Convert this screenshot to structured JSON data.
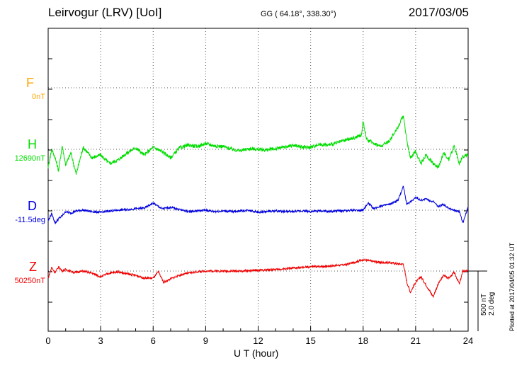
{
  "header": {
    "station": "Leirvogur (LRV)  [UoI]",
    "coords": "GG ( 64.18°, 338.30°)",
    "date": "2017/03/05"
  },
  "channels": [
    {
      "letter": "F",
      "baseline": "0nT",
      "color": "#ffa500"
    },
    {
      "letter": "H",
      "baseline": "12690nT",
      "color": "#00dd00"
    },
    {
      "letter": "D",
      "baseline": "-11.5deg",
      "color": "#0000dd"
    },
    {
      "letter": "Z",
      "baseline": "50250nT",
      "color": "#ee0000"
    }
  ],
  "scale": {
    "nT": "500 nT",
    "deg": "2.0 deg"
  },
  "plotted": "Plotted at 2017/04/05 01:32 UT",
  "chart_data": {
    "type": "line",
    "xlabel": "U T (hour)",
    "xlim": [
      0,
      24
    ],
    "xticks": [
      "0",
      "3",
      "6",
      "9",
      "12",
      "15",
      "18",
      "21",
      "24"
    ],
    "grid": true,
    "series": [
      {
        "name": "F",
        "color": "#ffa500",
        "x": [],
        "y": []
      },
      {
        "name": "H",
        "color": "#00dd00",
        "x": [
          0,
          0.2,
          0.4,
          0.6,
          0.8,
          1.0,
          1.3,
          1.6,
          2.0,
          2.5,
          3.0,
          3.5,
          4.0,
          4.5,
          5.0,
          5.5,
          6.0,
          6.5,
          7.0,
          7.5,
          8.0,
          8.5,
          9.0,
          9.5,
          10.0,
          10.5,
          11.0,
          11.5,
          12.0,
          12.5,
          13.0,
          13.5,
          14.0,
          14.5,
          15.0,
          15.5,
          16.0,
          16.5,
          17.0,
          17.5,
          17.9,
          18.0,
          18.2,
          18.6,
          19.0,
          19.5,
          20.0,
          20.3,
          20.5,
          20.7,
          21.0,
          21.3,
          21.6,
          22.0,
          22.3,
          22.6,
          22.9,
          23.2,
          23.5,
          23.7,
          24.0
        ],
        "y": [
          -25,
          0,
          -12,
          -30,
          5,
          -22,
          -5,
          -35,
          3,
          -12,
          -8,
          -20,
          -15,
          -5,
          2,
          -8,
          3,
          -3,
          -12,
          2,
          6,
          4,
          8,
          5,
          4,
          0,
          -2,
          1,
          0,
          -1,
          1,
          3,
          6,
          3,
          3,
          7,
          6,
          9,
          13,
          16,
          20,
          40,
          14,
          9,
          4,
          12,
          32,
          48,
          12,
          -12,
          -3,
          -20,
          -8,
          -20,
          -25,
          -5,
          -15,
          5,
          -20,
          -10,
          -8
        ]
      },
      {
        "name": "D",
        "color": "#0000dd",
        "x": [
          0,
          0.2,
          0.4,
          0.6,
          0.8,
          1.0,
          1.3,
          1.6,
          2.0,
          2.5,
          3.0,
          3.5,
          4.0,
          4.5,
          5.0,
          5.5,
          6.0,
          6.5,
          7.0,
          7.5,
          8.0,
          8.5,
          9.0,
          9.5,
          10.0,
          10.5,
          11.0,
          11.5,
          12.0,
          12.5,
          13.0,
          13.5,
          14.0,
          14.5,
          15.0,
          15.5,
          16.0,
          16.5,
          17.0,
          17.5,
          18.0,
          18.3,
          18.6,
          19.0,
          19.5,
          20.0,
          20.3,
          20.5,
          20.7,
          21.0,
          21.3,
          21.6,
          22.0,
          22.3,
          22.6,
          22.9,
          23.2,
          23.5,
          23.7,
          24.0
        ],
        "y": [
          -15,
          -5,
          -18,
          -12,
          -8,
          -2,
          -4,
          -1,
          0,
          -2,
          -3,
          -1,
          0,
          1,
          2,
          3,
          10,
          2,
          4,
          1,
          -2,
          -1,
          0,
          -2,
          -1,
          -2,
          -1,
          0,
          -3,
          -2,
          -1,
          -2,
          -2,
          -1,
          -2,
          -1,
          -2,
          -1,
          -1,
          0,
          0,
          10,
          2,
          6,
          8,
          14,
          34,
          8,
          12,
          18,
          14,
          16,
          12,
          5,
          8,
          3,
          0,
          -2,
          -18,
          5
        ]
      },
      {
        "name": "Z",
        "color": "#ee0000",
        "x": [
          0,
          0.2,
          0.4,
          0.6,
          0.8,
          1.0,
          1.5,
          2.0,
          2.5,
          3.0,
          3.5,
          4.0,
          4.5,
          5.0,
          5.5,
          6.0,
          6.3,
          6.6,
          7.0,
          7.5,
          8.0,
          8.5,
          9.0,
          10.0,
          11.0,
          12.0,
          13.0,
          14.0,
          15.0,
          16.0,
          17.0,
          18.0,
          19.0,
          19.5,
          20.0,
          20.3,
          20.5,
          20.7,
          21.0,
          21.3,
          21.6,
          22.0,
          22.3,
          22.6,
          22.9,
          23.2,
          23.5,
          23.7,
          24.0
        ],
        "y": [
          -10,
          5,
          -2,
          6,
          0,
          2,
          -2,
          0,
          -3,
          -8,
          -3,
          -1,
          -4,
          -6,
          -10,
          -10,
          -1,
          -16,
          -11,
          -6,
          -3,
          -1,
          0,
          0,
          0,
          1,
          2,
          4,
          6,
          7,
          9,
          16,
          12,
          12,
          10,
          10,
          -16,
          -30,
          -16,
          -8,
          -20,
          -36,
          -18,
          -6,
          -10,
          -2,
          -18,
          0,
          0
        ]
      }
    ]
  }
}
